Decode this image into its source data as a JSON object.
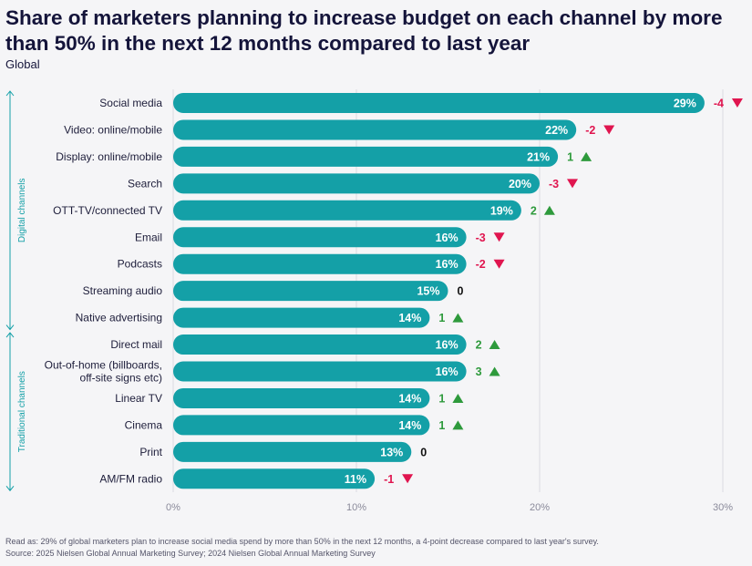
{
  "title": "Share of marketers planning to increase budget on each channel by more than 50% in the next 12 months compared to last year",
  "subtitle": "Global",
  "chart_data": {
    "type": "bar",
    "orientation": "horizontal",
    "categories": [
      "Social media",
      "Video: online/mobile",
      "Display: online/mobile",
      "Search",
      "OTT-TV/connected TV",
      "Email",
      "Podcasts",
      "Streaming audio",
      "Native advertising",
      "Direct mail",
      "Out-of-home (billboards, off-site signs etc)",
      "Linear TV",
      "Cinema",
      "Print",
      "AM/FM radio"
    ],
    "value_labels": [
      "29%",
      "22%",
      "21%",
      "20%",
      "19%",
      "16%",
      "16%",
      "15%",
      "14%",
      "16%",
      "16%",
      "14%",
      "14%",
      "13%",
      "11%"
    ],
    "values": [
      29,
      22,
      21,
      20,
      19,
      16,
      16,
      15,
      14,
      16,
      16,
      14,
      14,
      13,
      11
    ],
    "change": [
      -4,
      -2,
      1,
      -3,
      2,
      -3,
      -2,
      0,
      1,
      2,
      3,
      1,
      1,
      0,
      -1
    ],
    "x_ticks": [
      "0%",
      "10%",
      "20%",
      "30%"
    ],
    "xlim": [
      0,
      30
    ],
    "groups": [
      {
        "name": "Digital channels",
        "from": 0,
        "to": 8
      },
      {
        "name": "Traditional channels",
        "from": 9,
        "to": 14
      }
    ],
    "colors": {
      "bar": "#14a0a7",
      "up": "#2e9a3c",
      "down": "#e0154f",
      "neutral": "#111111",
      "group": "#14a0a7"
    }
  },
  "footnotes": {
    "read_as": "Read as: 29% of global marketers plan to increase social media spend by more than 50% in the next 12 months, a 4-point decrease compared to last year's survey.",
    "source": "Source: 2025 Nielsen Global Annual Marketing Survey; 2024 Nielsen Global Annual Marketing Survey"
  }
}
